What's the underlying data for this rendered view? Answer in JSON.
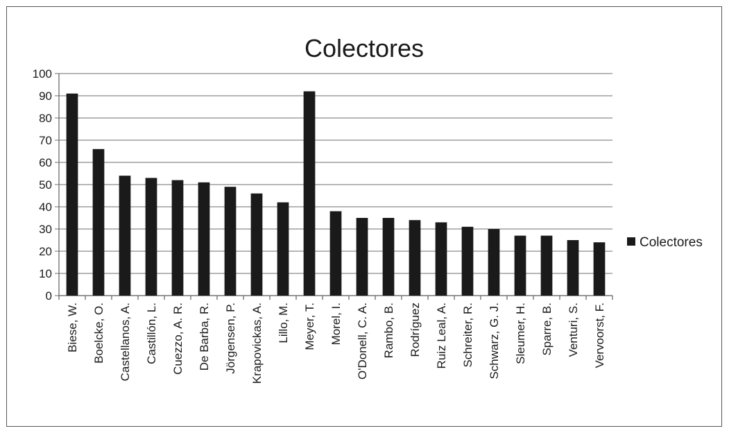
{
  "chart_data": {
    "type": "bar",
    "title": "Colectores",
    "xlabel": "",
    "ylabel": "",
    "ylim": [
      0,
      100
    ],
    "yticks": [
      0,
      10,
      20,
      30,
      40,
      50,
      60,
      70,
      80,
      90,
      100
    ],
    "grid": true,
    "legend": "right",
    "categories": [
      "Biese, W.",
      "Boelcke, O.",
      "Castellanos, A.",
      "Castillón, L.",
      "Cuezzo, A. R.",
      "De Barba, R.",
      "Jörgensen, P.",
      "Krapovickas, A.",
      "Lillo, M.",
      "Meyer, T.",
      "Morel, I.",
      "O'Donell, C. A.",
      "Rambo, B.",
      "Rodríguez",
      "Ruiz Leal, A.",
      "Schreiter, R.",
      "Schwarz, G. J.",
      "Sleumer, H.",
      "Sparre, B.",
      "Venturi, S.",
      "Vervoorst, F."
    ],
    "series": [
      {
        "name": "Colectores",
        "color": "#1a1a1a",
        "values": [
          91,
          66,
          54,
          53,
          52,
          51,
          49,
          46,
          42,
          92,
          38,
          35,
          35,
          34,
          33,
          31,
          30,
          27,
          27,
          25,
          24
        ]
      }
    ]
  }
}
